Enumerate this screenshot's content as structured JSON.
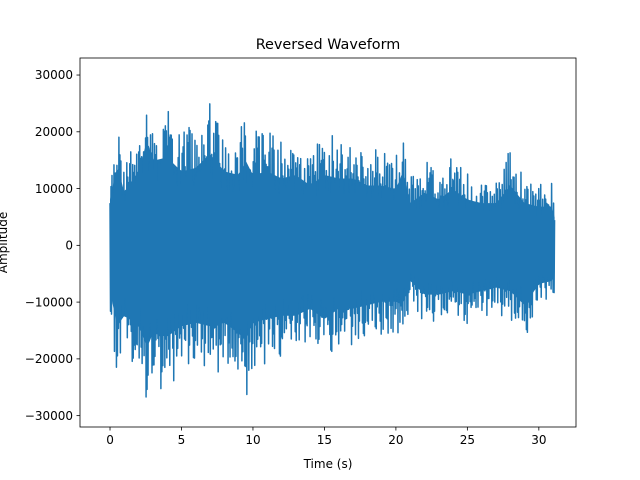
{
  "chart_data": {
    "type": "line",
    "title": "Reversed Waveform",
    "xlabel": "Time (s)",
    "ylabel": "Amplitude",
    "xlim": [
      -2.1,
      32.6
    ],
    "ylim": [
      -32000,
      33000
    ],
    "x_ticks": [
      0,
      5,
      10,
      15,
      20,
      25,
      30
    ],
    "y_ticks": [
      -30000,
      -20000,
      -10000,
      0,
      10000,
      20000,
      30000
    ],
    "x_tick_labels": [
      "0",
      "5",
      "10",
      "15",
      "20",
      "25",
      "30"
    ],
    "y_tick_labels": [
      "−30000",
      "−20000",
      "−10000",
      "0",
      "10000",
      "20000",
      "30000"
    ],
    "grid": false,
    "series": [
      {
        "color": "#1f77b4",
        "x_range": [
          0,
          31.1
        ],
        "envelope": {
          "t": [
            0,
            0.5,
            1,
            2,
            2.6,
            3,
            4,
            5,
            6,
            7,
            8,
            9,
            9.5,
            10,
            11,
            12,
            13,
            14,
            15,
            16,
            17,
            18,
            19,
            20,
            20.5,
            21,
            22,
            23,
            24,
            25,
            26,
            27,
            28,
            29,
            30,
            31,
            31.1
          ],
          "upper": [
            13000,
            23000,
            15000,
            21000,
            30000,
            24000,
            25000,
            21000,
            22000,
            26000,
            21000,
            20000,
            24000,
            20000,
            21000,
            19000,
            20000,
            17000,
            20000,
            19000,
            19000,
            17000,
            17000,
            16000,
            21000,
            12000,
            15000,
            13000,
            16000,
            13000,
            12000,
            12000,
            17000,
            12000,
            11000,
            11000,
            8000
          ],
          "lower": [
            -13000,
            -23000,
            -20000,
            -23000,
            -29000,
            -25000,
            -26000,
            -23000,
            -22000,
            -23000,
            -22000,
            -25000,
            -27000,
            -22000,
            -21000,
            -20000,
            -20000,
            -18000,
            -21000,
            -18000,
            -18000,
            -17000,
            -16000,
            -16000,
            -17000,
            -10000,
            -14000,
            -14000,
            -13000,
            -14000,
            -13000,
            -12000,
            -13000,
            -17000,
            -11000,
            -10000,
            -8000
          ]
        }
      }
    ]
  }
}
